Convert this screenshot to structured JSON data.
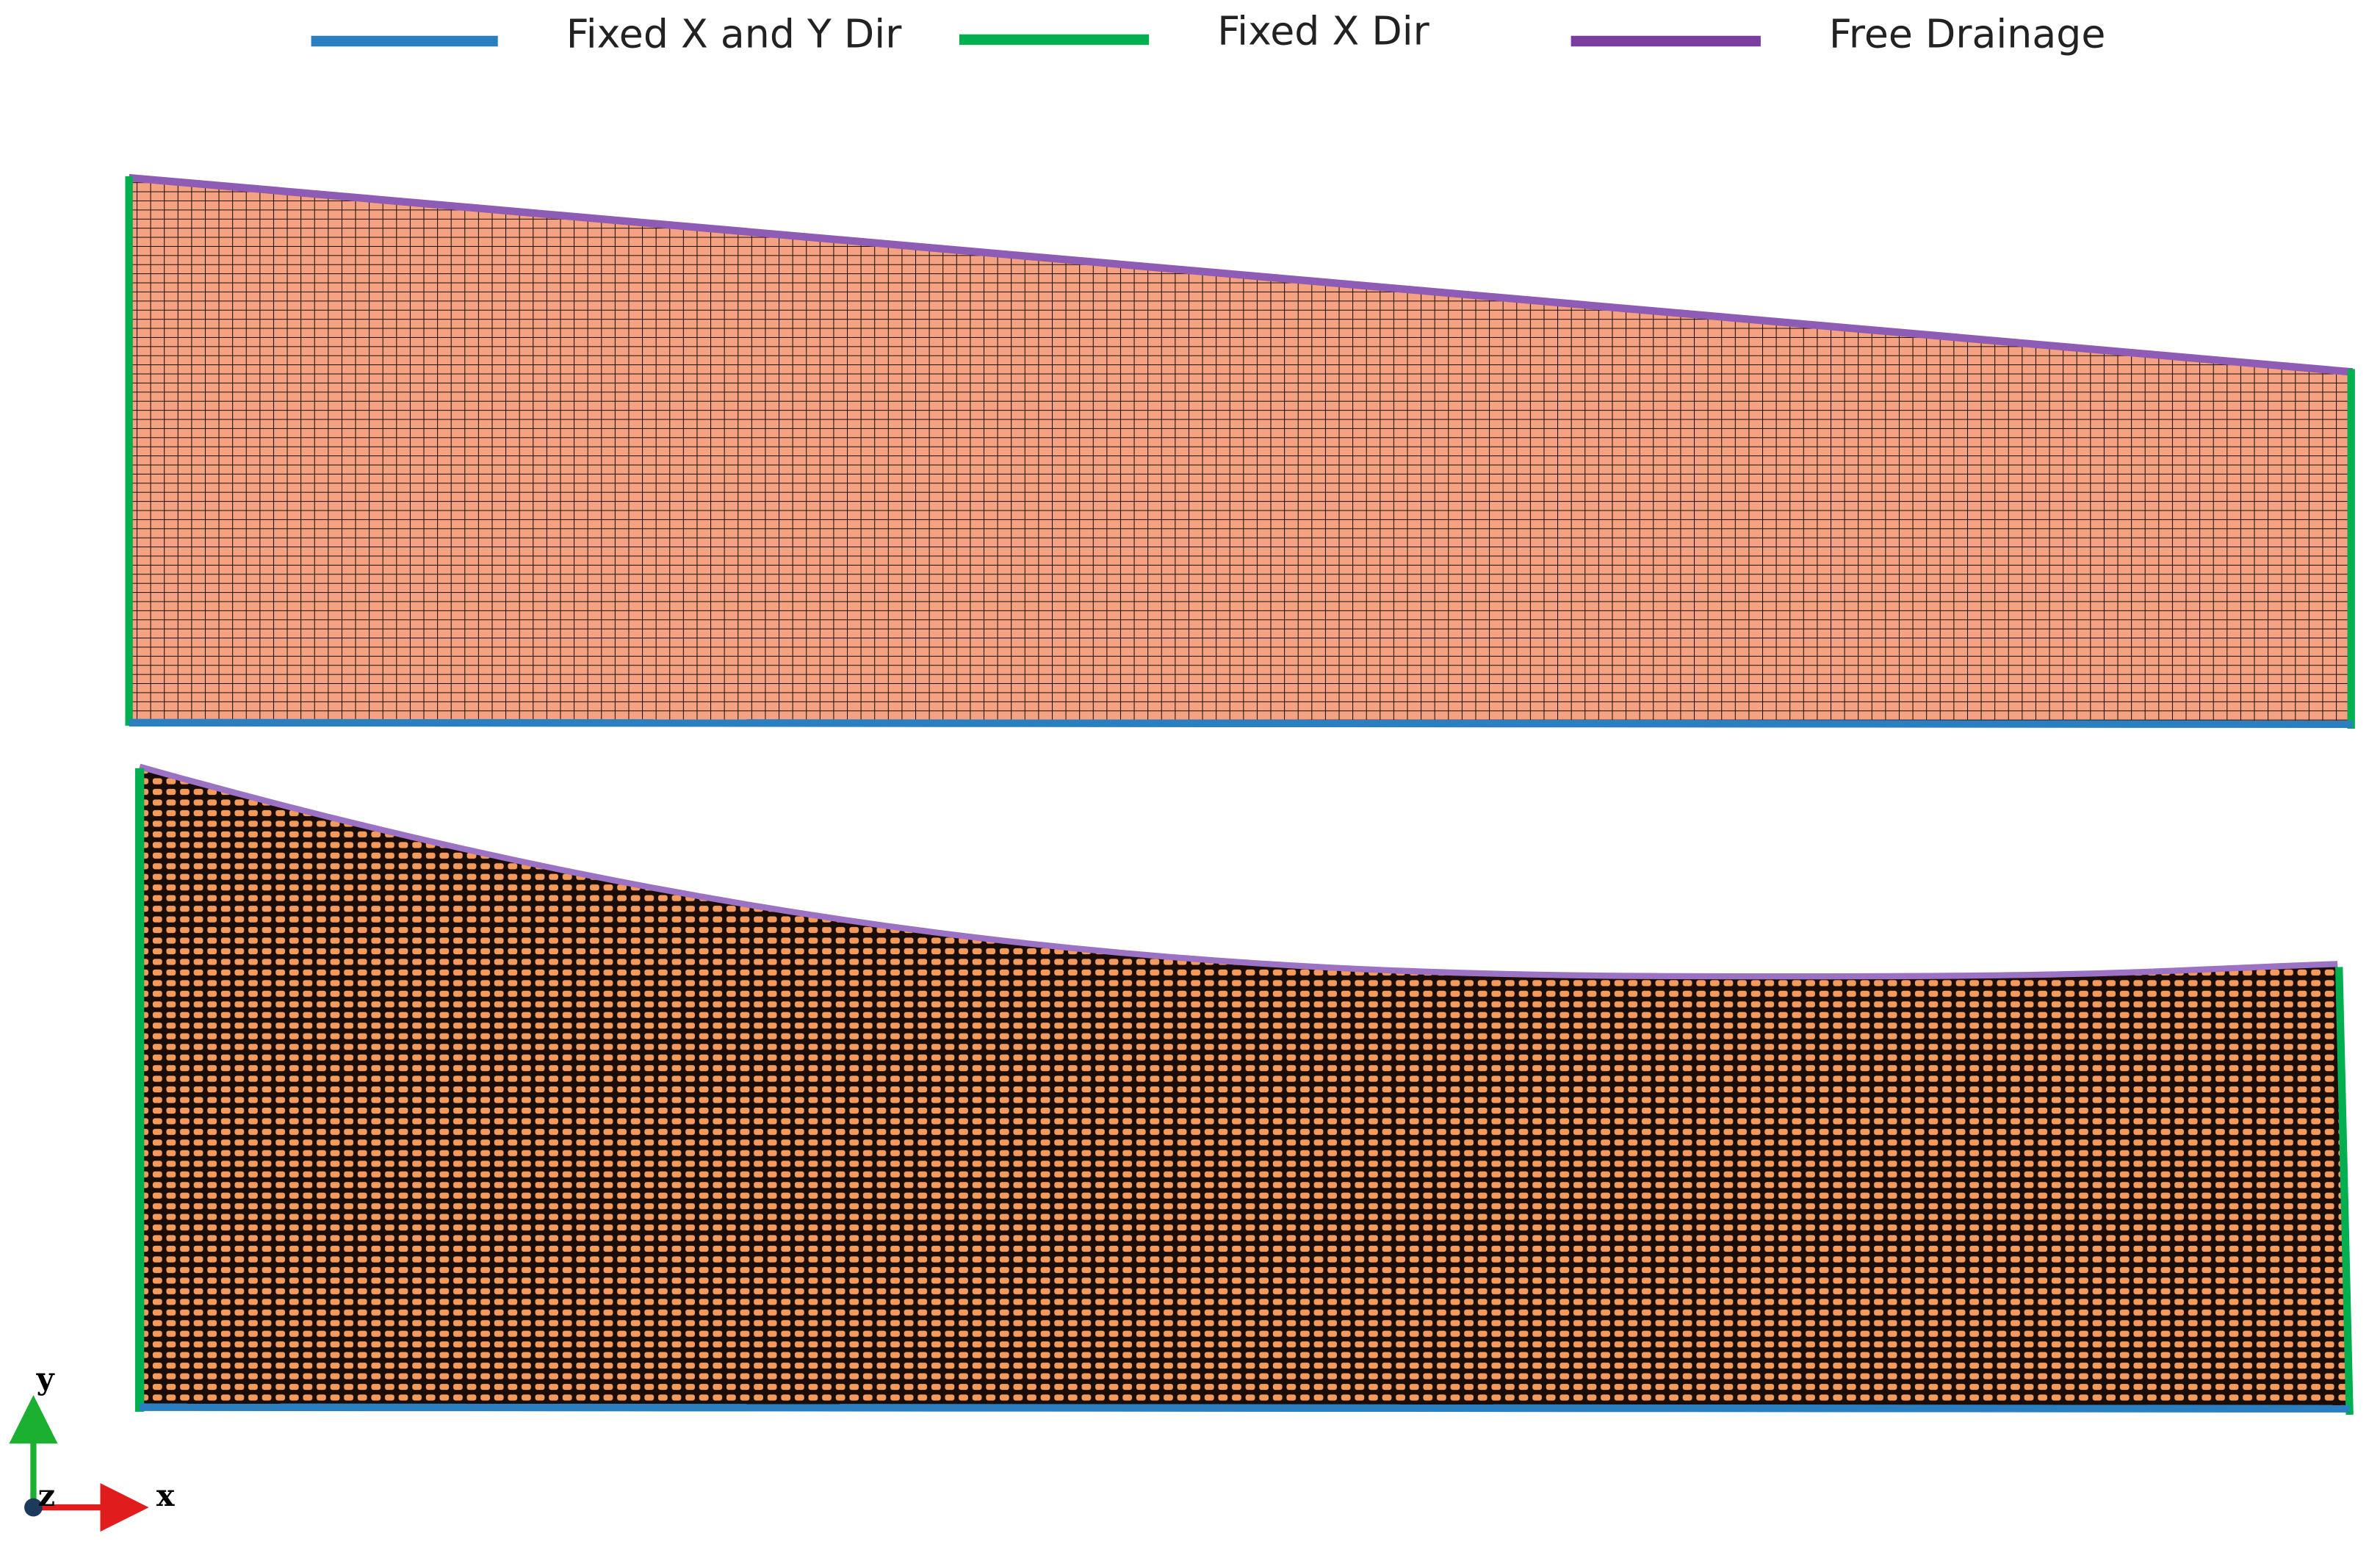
{
  "legend": [
    {
      "label": "Fixed X and Y Dir"
    },
    {
      "label": "Fixed X Dir"
    },
    {
      "label": "Free Drainage"
    }
  ],
  "axes": {
    "y": "y",
    "z": "z",
    "x": "x"
  }
}
